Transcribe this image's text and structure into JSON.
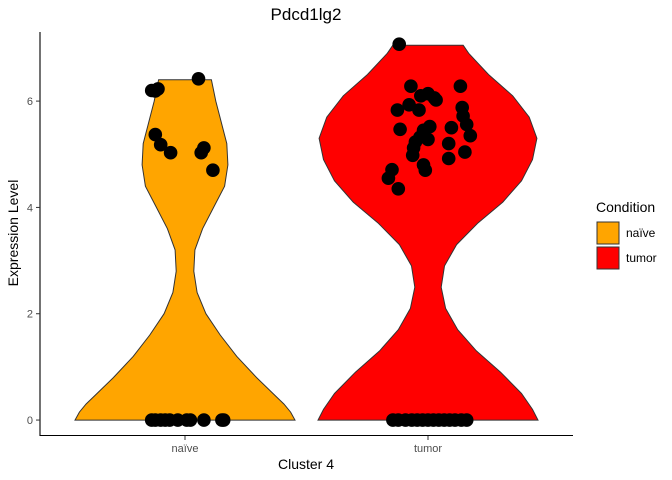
{
  "chart_data": {
    "type": "violin",
    "title": "Pdcd1lg2",
    "xlabel": "Cluster 4",
    "ylabel": "Expression Level",
    "categories": [
      "naïve",
      "tumor"
    ],
    "ylim": [
      -0.3,
      7.3
    ],
    "yticks": [
      0,
      2,
      4,
      6
    ],
    "legend": {
      "title": "Condition",
      "position": "right",
      "items": [
        {
          "label": "naïve",
          "color": "#FFA500"
        },
        {
          "label": "tumor",
          "color": "#FF0000"
        }
      ]
    },
    "violins": [
      {
        "category": "naïve",
        "color": "#FFA500",
        "ymin": 0,
        "ymax": 6.4,
        "profile": [
          [
            0.0,
            1.0
          ],
          [
            0.15,
            0.96
          ],
          [
            0.3,
            0.9
          ],
          [
            0.5,
            0.8
          ],
          [
            0.8,
            0.65
          ],
          [
            1.2,
            0.47
          ],
          [
            1.6,
            0.32
          ],
          [
            2.0,
            0.19
          ],
          [
            2.4,
            0.11
          ],
          [
            2.8,
            0.08
          ],
          [
            3.2,
            0.09
          ],
          [
            3.6,
            0.16
          ],
          [
            4.0,
            0.26
          ],
          [
            4.4,
            0.36
          ],
          [
            4.8,
            0.39
          ],
          [
            5.2,
            0.38
          ],
          [
            5.6,
            0.33
          ],
          [
            6.0,
            0.28
          ],
          [
            6.4,
            0.24
          ]
        ],
        "points": [
          {
            "y": 6.42,
            "jitter": 0.15
          },
          {
            "y": 6.23,
            "jitter": -0.3
          },
          {
            "y": 6.2,
            "jitter": -0.37
          },
          {
            "y": 6.19,
            "jitter": -0.33
          },
          {
            "y": 5.37,
            "jitter": -0.33
          },
          {
            "y": 5.18,
            "jitter": -0.27
          },
          {
            "y": 5.03,
            "jitter": -0.16
          },
          {
            "y": 5.12,
            "jitter": 0.21
          },
          {
            "y": 5.03,
            "jitter": 0.18
          },
          {
            "y": 4.7,
            "jitter": 0.31
          },
          {
            "y": 0,
            "jitter": -0.37
          },
          {
            "y": 0,
            "jitter": -0.33
          },
          {
            "y": 0,
            "jitter": -0.27
          },
          {
            "y": 0,
            "jitter": -0.22
          },
          {
            "y": 0,
            "jitter": -0.17
          },
          {
            "y": 0,
            "jitter": -0.08
          },
          {
            "y": 0,
            "jitter": 0.02
          },
          {
            "y": 0,
            "jitter": 0.06
          },
          {
            "y": 0,
            "jitter": 0.21
          },
          {
            "y": 0,
            "jitter": 0.41
          },
          {
            "y": 0,
            "jitter": 0.43
          }
        ]
      },
      {
        "category": "tumor",
        "color": "#FF0000",
        "ymin": 0,
        "ymax": 7.05,
        "profile": [
          [
            0.0,
            1.0
          ],
          [
            0.2,
            0.95
          ],
          [
            0.5,
            0.85
          ],
          [
            0.9,
            0.66
          ],
          [
            1.3,
            0.44
          ],
          [
            1.7,
            0.27
          ],
          [
            2.1,
            0.16
          ],
          [
            2.5,
            0.12
          ],
          [
            2.9,
            0.15
          ],
          [
            3.3,
            0.26
          ],
          [
            3.7,
            0.45
          ],
          [
            4.1,
            0.68
          ],
          [
            4.5,
            0.85
          ],
          [
            4.9,
            0.95
          ],
          [
            5.3,
            0.99
          ],
          [
            5.7,
            0.92
          ],
          [
            6.1,
            0.77
          ],
          [
            6.5,
            0.55
          ],
          [
            6.9,
            0.37
          ],
          [
            7.05,
            0.32
          ]
        ],
        "points": [
          {
            "y": 7.07,
            "jitter": -0.32
          },
          {
            "y": 6.28,
            "jitter": -0.19
          },
          {
            "y": 6.28,
            "jitter": 0.36
          },
          {
            "y": 6.14,
            "jitter": 0.0
          },
          {
            "y": 6.1,
            "jitter": -0.08
          },
          {
            "y": 6.06,
            "jitter": 0.07
          },
          {
            "y": 6.02,
            "jitter": 0.09
          },
          {
            "y": 5.93,
            "jitter": -0.21
          },
          {
            "y": 5.88,
            "jitter": 0.38
          },
          {
            "y": 5.83,
            "jitter": -0.34
          },
          {
            "y": 5.83,
            "jitter": -0.1
          },
          {
            "y": 5.72,
            "jitter": 0.39
          },
          {
            "y": 5.56,
            "jitter": 0.43
          },
          {
            "y": 5.52,
            "jitter": 0.02
          },
          {
            "y": 5.5,
            "jitter": 0.26
          },
          {
            "y": 5.47,
            "jitter": -0.31
          },
          {
            "y": 5.45,
            "jitter": -0.05
          },
          {
            "y": 5.35,
            "jitter": 0.47
          },
          {
            "y": 5.32,
            "jitter": -0.09
          },
          {
            "y": 5.28,
            "jitter": 0.0
          },
          {
            "y": 5.23,
            "jitter": -0.14
          },
          {
            "y": 5.2,
            "jitter": 0.23
          },
          {
            "y": 5.12,
            "jitter": -0.16
          },
          {
            "y": 5.04,
            "jitter": 0.41
          },
          {
            "y": 4.98,
            "jitter": -0.17
          },
          {
            "y": 4.92,
            "jitter": 0.23
          },
          {
            "y": 4.8,
            "jitter": -0.05
          },
          {
            "y": 4.71,
            "jitter": -0.4
          },
          {
            "y": 4.7,
            "jitter": -0.03
          },
          {
            "y": 4.55,
            "jitter": -0.44
          },
          {
            "y": 4.35,
            "jitter": -0.33
          },
          {
            "y": 0,
            "jitter": -0.39
          },
          {
            "y": 0,
            "jitter": -0.33
          },
          {
            "y": 0,
            "jitter": -0.25
          },
          {
            "y": 0,
            "jitter": -0.18
          },
          {
            "y": 0,
            "jitter": -0.12
          },
          {
            "y": 0,
            "jitter": -0.06
          },
          {
            "y": 0,
            "jitter": 0.0
          },
          {
            "y": 0,
            "jitter": 0.06
          },
          {
            "y": 0,
            "jitter": 0.12
          },
          {
            "y": 0,
            "jitter": 0.18
          },
          {
            "y": 0,
            "jitter": 0.24
          },
          {
            "y": 0,
            "jitter": 0.3
          },
          {
            "y": 0,
            "jitter": 0.37
          },
          {
            "y": 0,
            "jitter": 0.43
          }
        ]
      }
    ]
  }
}
